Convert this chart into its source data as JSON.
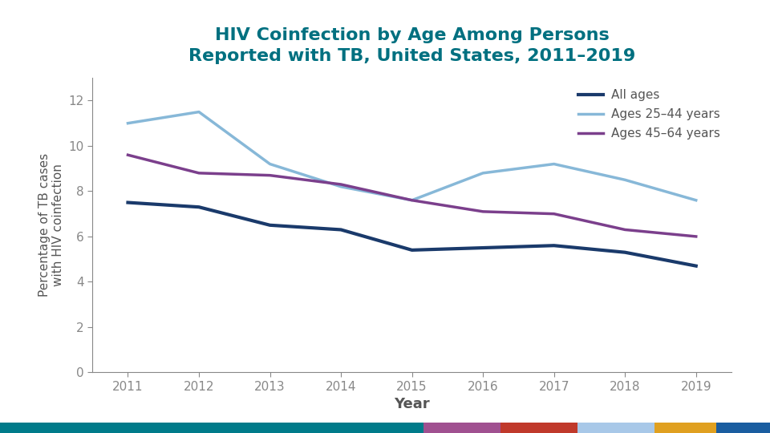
{
  "title_line1": "HIV Coinfection by Age Among Persons",
  "title_line2": "Reported with TB, United States, 2011–2019",
  "title_color": "#007080",
  "xlabel": "Year",
  "ylabel": "Percentage of TB cases\nwith HIV coinfection",
  "years": [
    2011,
    2012,
    2013,
    2014,
    2015,
    2016,
    2017,
    2018,
    2019
  ],
  "all_ages": [
    7.5,
    7.3,
    6.5,
    6.3,
    5.4,
    5.5,
    5.6,
    5.3,
    4.7
  ],
  "ages_25_44": [
    11.0,
    11.5,
    9.2,
    8.2,
    7.6,
    8.8,
    9.2,
    8.5,
    7.6
  ],
  "ages_45_64": [
    9.6,
    8.8,
    8.7,
    8.3,
    7.6,
    7.1,
    7.0,
    6.3,
    6.0
  ],
  "color_all_ages": "#1a3a6b",
  "color_25_44": "#87b8d8",
  "color_45_64": "#7b3f8c",
  "legend_labels": [
    "All ages",
    "Ages 25–44 years",
    "Ages 45–64 years"
  ],
  "ylim": [
    0,
    13
  ],
  "yticks": [
    0,
    2,
    4,
    6,
    8,
    10,
    12
  ],
  "footer_colors": [
    "#007b8a",
    "#a05090",
    "#c0392b",
    "#a8c8e8",
    "#e0a020",
    "#1a5da0"
  ],
  "footer_widths": [
    0.55,
    0.1,
    0.1,
    0.1,
    0.08,
    0.07
  ],
  "line_width": 2.5,
  "axis_color": "#888888",
  "tick_color": "#555555",
  "label_fontsize": 12,
  "tick_fontsize": 11,
  "legend_fontsize": 11
}
